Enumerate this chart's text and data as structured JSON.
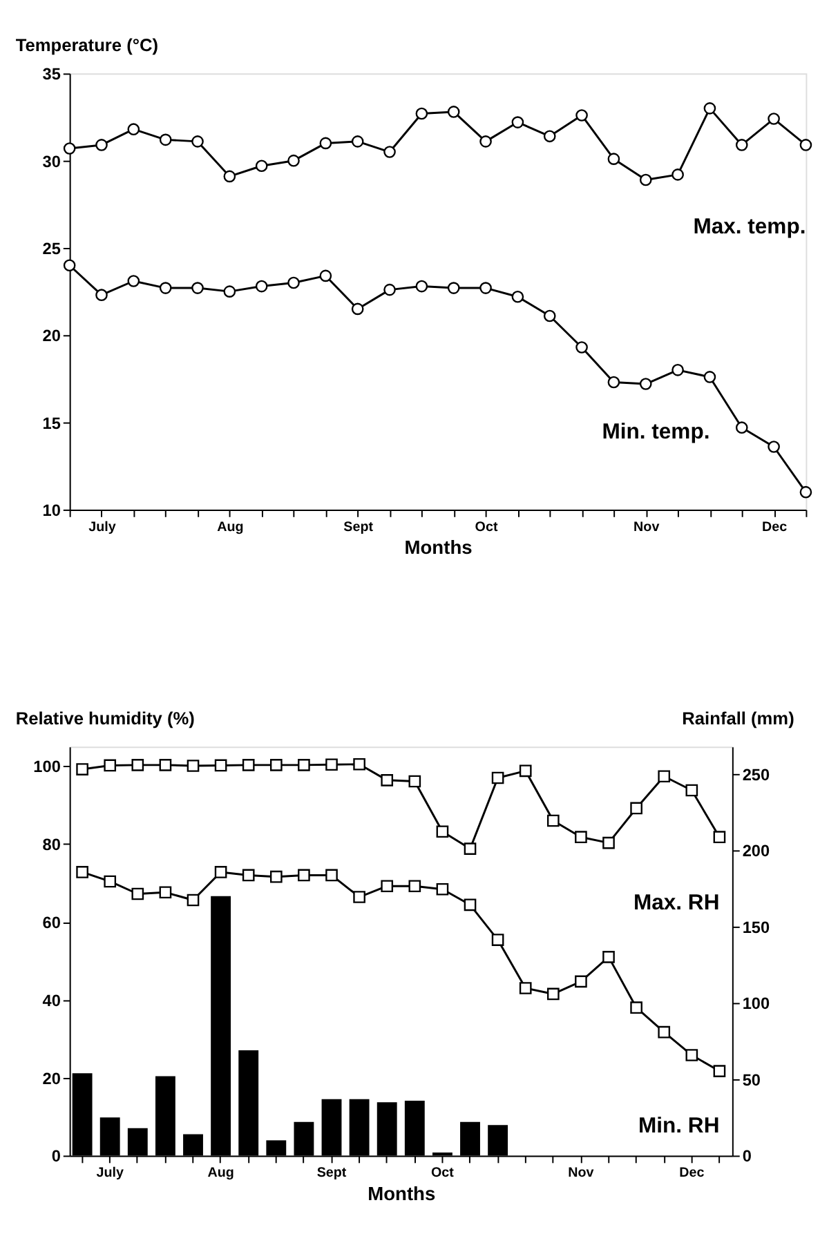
{
  "chart_data": [
    {
      "type": "line",
      "ylabel": "Temperature (°C)",
      "xlabel": "Months",
      "categories": [
        null,
        "July",
        null,
        null,
        null,
        "Aug",
        null,
        null,
        null,
        "Sept",
        null,
        null,
        null,
        "Oct",
        null,
        null,
        null,
        null,
        "Nov",
        null,
        null,
        null,
        "Dec",
        null
      ],
      "ylim": [
        10,
        35
      ],
      "yticks": [
        10,
        15,
        20,
        25,
        30,
        35
      ],
      "grid": false,
      "marker": "circle",
      "line_style": "solid",
      "series": [
        {
          "name": "Max. temp.",
          "color": "#000000",
          "values": [
            30.7,
            30.9,
            31.8,
            31.2,
            31.1,
            29.1,
            29.7,
            30.0,
            31.0,
            31.1,
            30.5,
            32.7,
            32.8,
            31.1,
            32.2,
            31.4,
            32.6,
            30.1,
            28.9,
            29.2,
            33.0,
            30.9,
            32.4,
            30.9
          ]
        },
        {
          "name": "Min. temp.",
          "color": "#000000",
          "values": [
            24.0,
            22.3,
            23.1,
            22.7,
            22.7,
            22.5,
            22.8,
            23.0,
            23.4,
            21.5,
            22.6,
            22.8,
            22.7,
            22.7,
            22.2,
            21.1,
            19.3,
            17.3,
            17.2,
            18.0,
            17.6,
            14.7,
            13.6,
            11.0
          ]
        }
      ]
    },
    {
      "type": "line",
      "ylabel": "Relative humidity (%)",
      "y2label": "Rainfall (mm)",
      "xlabel": "Months",
      "categories": [
        null,
        "July",
        null,
        null,
        null,
        "Aug",
        null,
        null,
        null,
        "Sept",
        null,
        null,
        null,
        "Oct",
        null,
        null,
        null,
        null,
        "Nov",
        null,
        null,
        null,
        "Dec",
        null
      ],
      "ylim": [
        0,
        105
      ],
      "yticks": [
        0,
        20,
        40,
        60,
        80,
        100
      ],
      "y2lim": [
        0,
        268
      ],
      "y2ticks": [
        0,
        50,
        100,
        150,
        200,
        250
      ],
      "grid": false,
      "marker": "square",
      "line_style": "solid",
      "series": [
        {
          "type": "bar",
          "axis": "y2",
          "color": "#000000",
          "values": [
            54,
            25,
            18,
            52,
            14,
            170,
            69,
            10,
            22,
            37,
            37,
            35,
            36,
            2,
            22,
            20,
            null,
            null,
            null,
            null,
            null,
            null,
            null,
            null
          ]
        },
        {
          "name": "Max. RH",
          "color": "#000000",
          "values": [
            99.2,
            100.2,
            100.3,
            100.3,
            100.1,
            100.2,
            100.3,
            100.3,
            100.3,
            100.4,
            100.5,
            96.4,
            96.1,
            83.2,
            78.8,
            97.0,
            98.8,
            86.0,
            81.8,
            80.3,
            89.2,
            97.4,
            93.8,
            81.8
          ]
        },
        {
          "name": "Min. RH",
          "color": "#000000",
          "values": [
            72.8,
            70.4,
            67.2,
            67.6,
            65.6,
            72.8,
            72.0,
            71.6,
            72.0,
            72.0,
            66.4,
            69.2,
            69.2,
            68.4,
            64.4,
            55.4,
            43.0,
            41.5,
            44.7,
            51.0,
            38.0,
            31.7,
            25.8,
            21.7
          ]
        }
      ]
    }
  ]
}
